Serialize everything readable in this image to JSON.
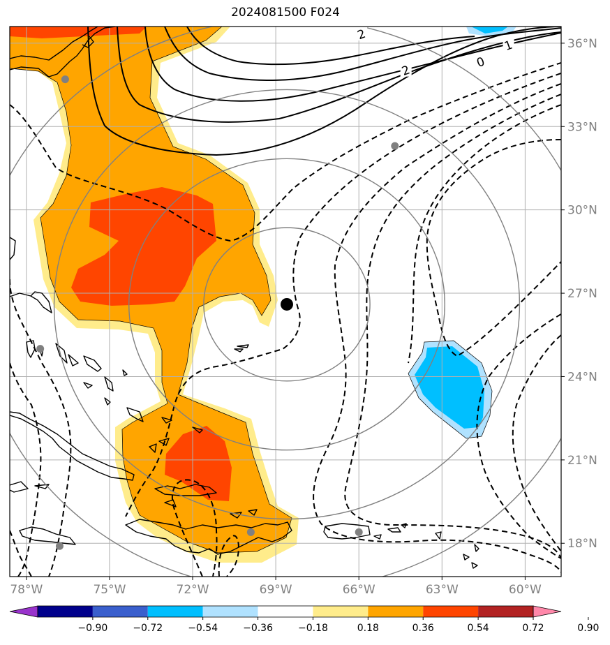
{
  "title": "2024081500 F024",
  "map": {
    "lon_range": [
      -78.6,
      -58.7
    ],
    "lat_range": [
      16.8,
      36.6
    ],
    "x_ticks": [
      {
        "value": -78,
        "label": "78°W"
      },
      {
        "value": -75,
        "label": "75°W"
      },
      {
        "value": -72,
        "label": "72°W"
      },
      {
        "value": -69,
        "label": "69°W"
      },
      {
        "value": -66,
        "label": "66°W"
      },
      {
        "value": -63,
        "label": "63°W"
      },
      {
        "value": -60,
        "label": "60°W"
      }
    ],
    "y_ticks": [
      {
        "value": 36,
        "label": "36°N"
      },
      {
        "value": 33,
        "label": "33°N"
      },
      {
        "value": 30,
        "label": "30°N"
      },
      {
        "value": 27,
        "label": "27°N"
      },
      {
        "value": 24,
        "label": "24°N"
      },
      {
        "value": 21,
        "label": "21°N"
      },
      {
        "value": 18,
        "label": "18°N"
      }
    ],
    "storm_center": {
      "lon": -68.6,
      "lat": 26.6
    },
    "range_rings_deg": [
      3,
      5.7,
      8.4,
      11.2
    ],
    "stations": [
      {
        "lon": -76.6,
        "lat": 34.7
      },
      {
        "lon": -64.7,
        "lat": 32.3
      },
      {
        "lon": -77.5,
        "lat": 25.0
      },
      {
        "lon": -76.8,
        "lat": 17.9
      },
      {
        "lon": -69.9,
        "lat": 18.4
      },
      {
        "lon": -66.0,
        "lat": 18.4
      }
    ],
    "contour_labels": [
      {
        "text": "2",
        "lon": -65.9,
        "lat": 36.3
      },
      {
        "text": "2",
        "lon": -64.3,
        "lat": 35.0
      },
      {
        "text": "1",
        "lon": -60.6,
        "lat": 35.9
      },
      {
        "text": "0",
        "lon": -61.6,
        "lat": 35.3
      }
    ],
    "colors": {
      "land_outline": "#000000",
      "grid": "#b0b0b0",
      "ring": "#808080",
      "station": "#808080"
    }
  },
  "colorbar": {
    "colors": [
      "#9933cc",
      "#00008b",
      "#3a5fcd",
      "#00bfff",
      "#b0e2ff",
      "#ffffff",
      "#ffec8b",
      "#ffa500",
      "#ff4500",
      "#b22222",
      "#ff88aa"
    ],
    "labels": [
      "−0.90",
      "−0.72",
      "−0.54",
      "−0.36",
      "−0.18",
      "0.18",
      "0.36",
      "0.54",
      "0.72",
      "0.90"
    ]
  }
}
